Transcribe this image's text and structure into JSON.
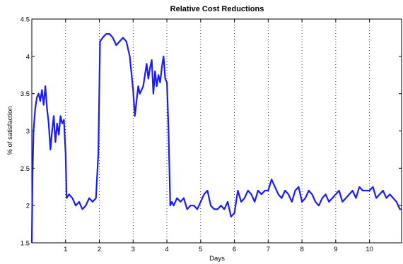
{
  "chart_data": {
    "type": "line",
    "title": "Relative Cost Reductions",
    "xlabel": "Days",
    "ylabel": "% of satisfaction",
    "xlim": [
      0,
      10.95
    ],
    "ylim": [
      1.5,
      4.5
    ],
    "x_ticks": [
      1,
      2,
      3,
      4,
      5,
      6,
      7,
      8,
      9,
      10
    ],
    "x_tick_labels": [
      "1",
      "2",
      "3",
      "4",
      "5",
      "6",
      "7",
      "8",
      "9",
      "10"
    ],
    "y_ticks": [
      1.5,
      2,
      2.5,
      3,
      3.5,
      4,
      4.5
    ],
    "y_tick_labels": [
      "1.5",
      "2",
      "2.5",
      "3",
      "3.5",
      "4",
      "4.5"
    ],
    "grid": "vertical-dotted",
    "line_color": "#1a1aff",
    "series": [
      {
        "x": [
          0,
          0.02,
          0.05,
          0.1,
          0.15,
          0.2,
          0.25,
          0.3,
          0.35,
          0.4,
          0.45,
          0.5,
          0.55,
          0.6,
          0.65,
          0.7,
          0.75,
          0.8,
          0.85,
          0.9,
          0.95,
          1.0,
          1.03,
          1.1,
          1.2,
          1.3,
          1.4,
          1.5,
          1.6,
          1.7,
          1.8,
          1.9,
          1.97,
          2.02,
          2.1,
          2.2,
          2.3,
          2.4,
          2.5,
          2.6,
          2.7,
          2.8,
          2.9,
          3.0,
          3.05,
          3.1,
          3.15,
          3.2,
          3.3,
          3.4,
          3.45,
          3.5,
          3.55,
          3.6,
          3.65,
          3.7,
          3.75,
          3.8,
          3.85,
          3.9,
          3.95,
          4.0,
          4.05,
          4.1,
          4.15,
          4.2,
          4.3,
          4.4,
          4.5,
          4.6,
          4.7,
          4.8,
          4.9,
          5.0,
          5.1,
          5.2,
          5.3,
          5.4,
          5.5,
          5.6,
          5.7,
          5.8,
          5.9,
          6.0,
          6.1,
          6.2,
          6.3,
          6.4,
          6.5,
          6.6,
          6.7,
          6.8,
          6.9,
          7.0,
          7.1,
          7.2,
          7.3,
          7.4,
          7.5,
          7.6,
          7.7,
          7.8,
          7.9,
          8.0,
          8.1,
          8.2,
          8.3,
          8.4,
          8.5,
          8.6,
          8.7,
          8.8,
          8.9,
          9.0,
          9.1,
          9.2,
          9.3,
          9.4,
          9.5,
          9.6,
          9.7,
          9.8,
          9.9,
          10.0,
          10.1,
          10.2,
          10.3,
          10.4,
          10.5,
          10.6,
          10.7,
          10.8,
          10.9,
          10.95
        ],
        "y": [
          1.5,
          2.4,
          3.0,
          3.3,
          3.45,
          3.5,
          3.4,
          3.55,
          3.35,
          3.6,
          3.3,
          3.1,
          2.75,
          3.0,
          3.2,
          2.85,
          3.1,
          2.95,
          3.2,
          3.1,
          3.15,
          2.7,
          2.1,
          2.15,
          2.1,
          2.0,
          2.05,
          1.95,
          2.0,
          2.1,
          2.05,
          2.1,
          2.7,
          4.2,
          4.25,
          4.3,
          4.3,
          4.25,
          4.15,
          4.2,
          4.25,
          4.2,
          4.0,
          3.55,
          3.2,
          3.4,
          3.6,
          3.5,
          3.6,
          3.9,
          3.7,
          3.85,
          3.95,
          3.5,
          3.8,
          3.6,
          3.75,
          3.65,
          3.85,
          4.0,
          3.7,
          3.65,
          3.0,
          2.0,
          2.05,
          2.0,
          2.1,
          2.05,
          2.1,
          1.95,
          2.0,
          2.0,
          1.95,
          2.05,
          2.15,
          2.2,
          2.0,
          1.95,
          1.95,
          2.0,
          1.95,
          2.05,
          1.85,
          1.9,
          2.2,
          2.05,
          2.1,
          2.2,
          2.15,
          2.05,
          2.2,
          2.15,
          2.2,
          2.2,
          2.35,
          2.25,
          2.15,
          2.1,
          2.2,
          2.15,
          2.05,
          2.2,
          2.25,
          2.05,
          2.1,
          2.2,
          2.15,
          2.05,
          2.0,
          2.1,
          2.15,
          2.05,
          2.1,
          2.15,
          2.2,
          2.05,
          2.1,
          2.15,
          2.2,
          2.1,
          2.25,
          2.2,
          2.2,
          2.2,
          2.25,
          2.1,
          2.15,
          2.2,
          2.1,
          2.15,
          2.1,
          2.05,
          1.95,
          1.95
        ]
      }
    ]
  }
}
